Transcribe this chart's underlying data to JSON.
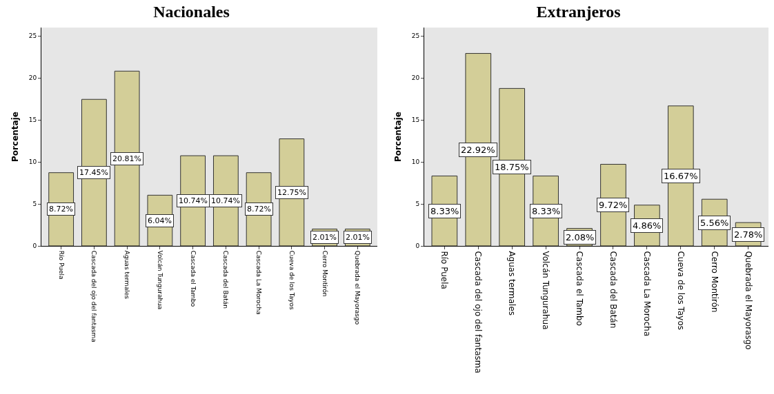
{
  "chart_data": [
    {
      "type": "bar",
      "title": "Nacionales",
      "ylabel": "Porcentaje",
      "categories": [
        "Río Puela",
        "Cascada del ojo del fantasma",
        "Aguas termales",
        "Volcán Tungurahua",
        "Cascada el Tambo",
        "Cascada del Batán",
        "Cascada La Morocha",
        "Cueva de los Tayos",
        "Cerro Montirón",
        "Quebrada el Mayorasgo"
      ],
      "values": [
        8.72,
        17.45,
        20.81,
        6.04,
        10.74,
        10.74,
        8.72,
        12.75,
        2.01,
        2.01
      ],
      "value_labels": [
        "8.72%",
        "17.45%",
        "20.81%",
        "6.04%",
        "10.74%",
        "10.74%",
        "8.72%",
        "12.75%",
        "2.01%",
        "2.01%"
      ],
      "color": "#d3ce98",
      "ylim": [
        0,
        26
      ],
      "yticks": [
        0,
        5,
        10,
        15,
        20,
        25
      ]
    },
    {
      "type": "bar",
      "title": "Extranjeros",
      "ylabel": "Porcentaje",
      "categories": [
        "Río Puela",
        "Cascada del ojo del fantasma",
        "Aguas termales",
        "Volcán Tungurahua",
        "Cascada el Tambo",
        "Cascada del Batán",
        "Cascada La Morocha",
        "Cueva de los Tayos",
        "Cerro Montirón",
        "Quebrada el Mayorasgo"
      ],
      "values": [
        8.33,
        22.92,
        18.75,
        8.33,
        2.08,
        9.72,
        4.86,
        16.67,
        5.56,
        2.78
      ],
      "value_labels": [
        "8.33%",
        "22.92%",
        "18.75%",
        "8.33%",
        "2.08%",
        "9.72%",
        "4.86%",
        "16.67%",
        "5.56%",
        "2.78%"
      ],
      "color": "#d3ce98",
      "ylim": [
        0,
        26
      ],
      "yticks": [
        0,
        5,
        10,
        15,
        20,
        25
      ]
    }
  ]
}
